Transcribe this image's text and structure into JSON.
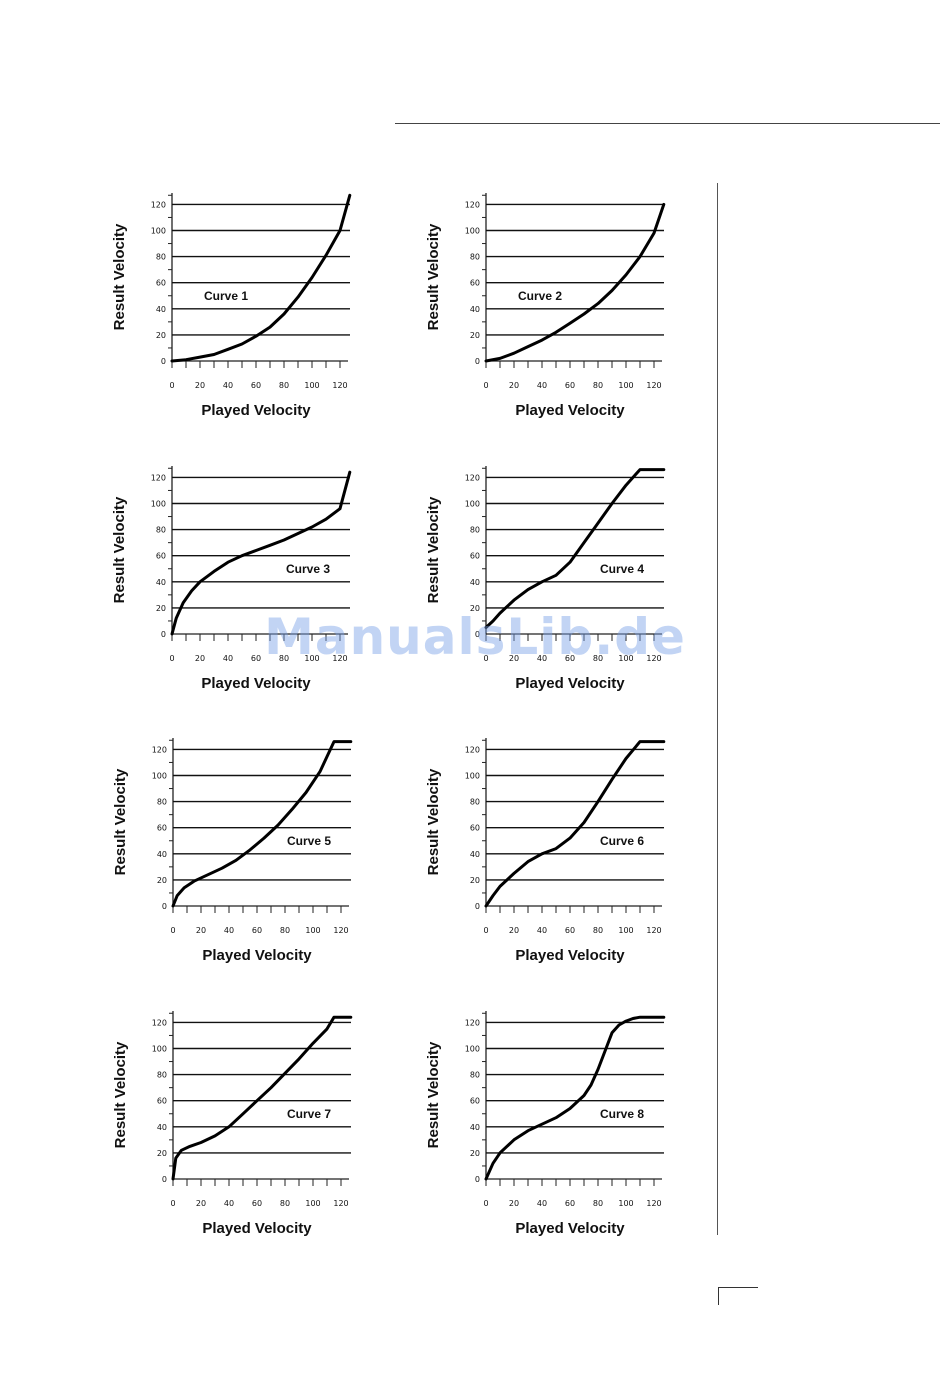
{
  "watermark": "ManualsLib.de",
  "chart_data": [
    {
      "type": "line",
      "label": "Curve 1",
      "xlabel": "Played Velocity",
      "ylabel": "Result Velocity",
      "xlim": [
        0,
        127
      ],
      "ylim": [
        0,
        127
      ],
      "xticks": [
        0,
        20,
        40,
        60,
        80,
        100,
        120
      ],
      "yticks": [
        0,
        20,
        40,
        60,
        80,
        100,
        120
      ],
      "x": [
        0,
        10,
        20,
        30,
        40,
        50,
        60,
        70,
        80,
        90,
        100,
        110,
        120,
        127
      ],
      "y": [
        0,
        1,
        3,
        5,
        9,
        13,
        19,
        26,
        36,
        49,
        64,
        81,
        100,
        127
      ]
    },
    {
      "type": "line",
      "label": "Curve 2",
      "xlabel": "Played Velocity",
      "ylabel": "Result Velocity",
      "xlim": [
        0,
        127
      ],
      "ylim": [
        0,
        127
      ],
      "xticks": [
        0,
        20,
        40,
        60,
        80,
        100,
        120
      ],
      "yticks": [
        0,
        20,
        40,
        60,
        80,
        100,
        120
      ],
      "x": [
        0,
        10,
        20,
        30,
        40,
        50,
        60,
        70,
        80,
        90,
        100,
        110,
        120,
        127
      ],
      "y": [
        0,
        2,
        6,
        11,
        16,
        22,
        29,
        36,
        44,
        54,
        66,
        80,
        98,
        120
      ]
    },
    {
      "type": "line",
      "label": "Curve 3",
      "xlabel": "Played Velocity",
      "ylabel": "Result Velocity",
      "xlim": [
        0,
        127
      ],
      "ylim": [
        0,
        127
      ],
      "xticks": [
        0,
        20,
        40,
        60,
        80,
        100,
        120
      ],
      "yticks": [
        0,
        20,
        40,
        60,
        80,
        100,
        120
      ],
      "x": [
        0,
        3,
        8,
        14,
        20,
        30,
        40,
        50,
        60,
        70,
        80,
        90,
        100,
        110,
        120,
        127
      ],
      "y": [
        0,
        12,
        24,
        33,
        40,
        48,
        55,
        60,
        64,
        68,
        72,
        77,
        82,
        88,
        96,
        124
      ]
    },
    {
      "type": "line",
      "label": "Curve 4",
      "xlabel": "Played Velocity",
      "ylabel": "Result Velocity",
      "xlim": [
        0,
        127
      ],
      "ylim": [
        0,
        127
      ],
      "xticks": [
        0,
        20,
        40,
        60,
        80,
        100,
        120
      ],
      "yticks": [
        0,
        20,
        40,
        60,
        80,
        100,
        120
      ],
      "x": [
        0,
        5,
        10,
        20,
        30,
        40,
        50,
        60,
        70,
        80,
        90,
        100,
        110,
        127
      ],
      "y": [
        5,
        10,
        16,
        26,
        34,
        40,
        45,
        55,
        70,
        85,
        100,
        114,
        126,
        126
      ]
    },
    {
      "type": "line",
      "label": "Curve 5",
      "xlabel": "Played Velocity",
      "ylabel": "Result Velocity",
      "xlim": [
        0,
        127
      ],
      "ylim": [
        0,
        127
      ],
      "xticks": [
        0,
        20,
        40,
        60,
        80,
        100,
        120
      ],
      "yticks": [
        0,
        20,
        40,
        60,
        80,
        100,
        120
      ],
      "x": [
        0,
        3,
        8,
        15,
        25,
        35,
        45,
        55,
        65,
        75,
        85,
        95,
        105,
        115,
        127
      ],
      "y": [
        0,
        8,
        14,
        19,
        24,
        29,
        35,
        43,
        52,
        62,
        74,
        87,
        103,
        126,
        126
      ]
    },
    {
      "type": "line",
      "label": "Curve 6",
      "xlabel": "Played Velocity",
      "ylabel": "Result Velocity",
      "xlim": [
        0,
        127
      ],
      "ylim": [
        0,
        127
      ],
      "xticks": [
        0,
        20,
        40,
        60,
        80,
        100,
        120
      ],
      "yticks": [
        0,
        20,
        40,
        60,
        80,
        100,
        120
      ],
      "x": [
        0,
        5,
        10,
        20,
        30,
        40,
        50,
        60,
        70,
        80,
        90,
        100,
        110,
        127
      ],
      "y": [
        0,
        8,
        15,
        25,
        34,
        40,
        44,
        52,
        64,
        80,
        97,
        113,
        126,
        126
      ]
    },
    {
      "type": "line",
      "label": "Curve 7",
      "xlabel": "Played Velocity",
      "ylabel": "Result Velocity",
      "xlim": [
        0,
        127
      ],
      "ylim": [
        0,
        127
      ],
      "xticks": [
        0,
        20,
        40,
        60,
        80,
        100,
        120
      ],
      "yticks": [
        0,
        20,
        40,
        60,
        80,
        100,
        120
      ],
      "x": [
        0,
        2,
        6,
        12,
        20,
        30,
        40,
        50,
        60,
        70,
        80,
        90,
        100,
        110,
        115,
        127
      ],
      "y": [
        0,
        16,
        22,
        25,
        28,
        33,
        40,
        50,
        60,
        70,
        81,
        92,
        104,
        115,
        124,
        124
      ]
    },
    {
      "type": "line",
      "label": "Curve 8",
      "xlabel": "Played Velocity",
      "ylabel": "Result Velocity",
      "xlim": [
        0,
        127
      ],
      "ylim": [
        0,
        127
      ],
      "xticks": [
        0,
        20,
        40,
        60,
        80,
        100,
        120
      ],
      "yticks": [
        0,
        20,
        40,
        60,
        80,
        100,
        120
      ],
      "x": [
        0,
        5,
        10,
        20,
        30,
        40,
        50,
        60,
        70,
        75,
        80,
        85,
        90,
        95,
        100,
        105,
        110,
        127
      ],
      "y": [
        0,
        12,
        20,
        30,
        37,
        42,
        47,
        54,
        64,
        72,
        84,
        98,
        112,
        118,
        121,
        123,
        124,
        124
      ]
    }
  ]
}
